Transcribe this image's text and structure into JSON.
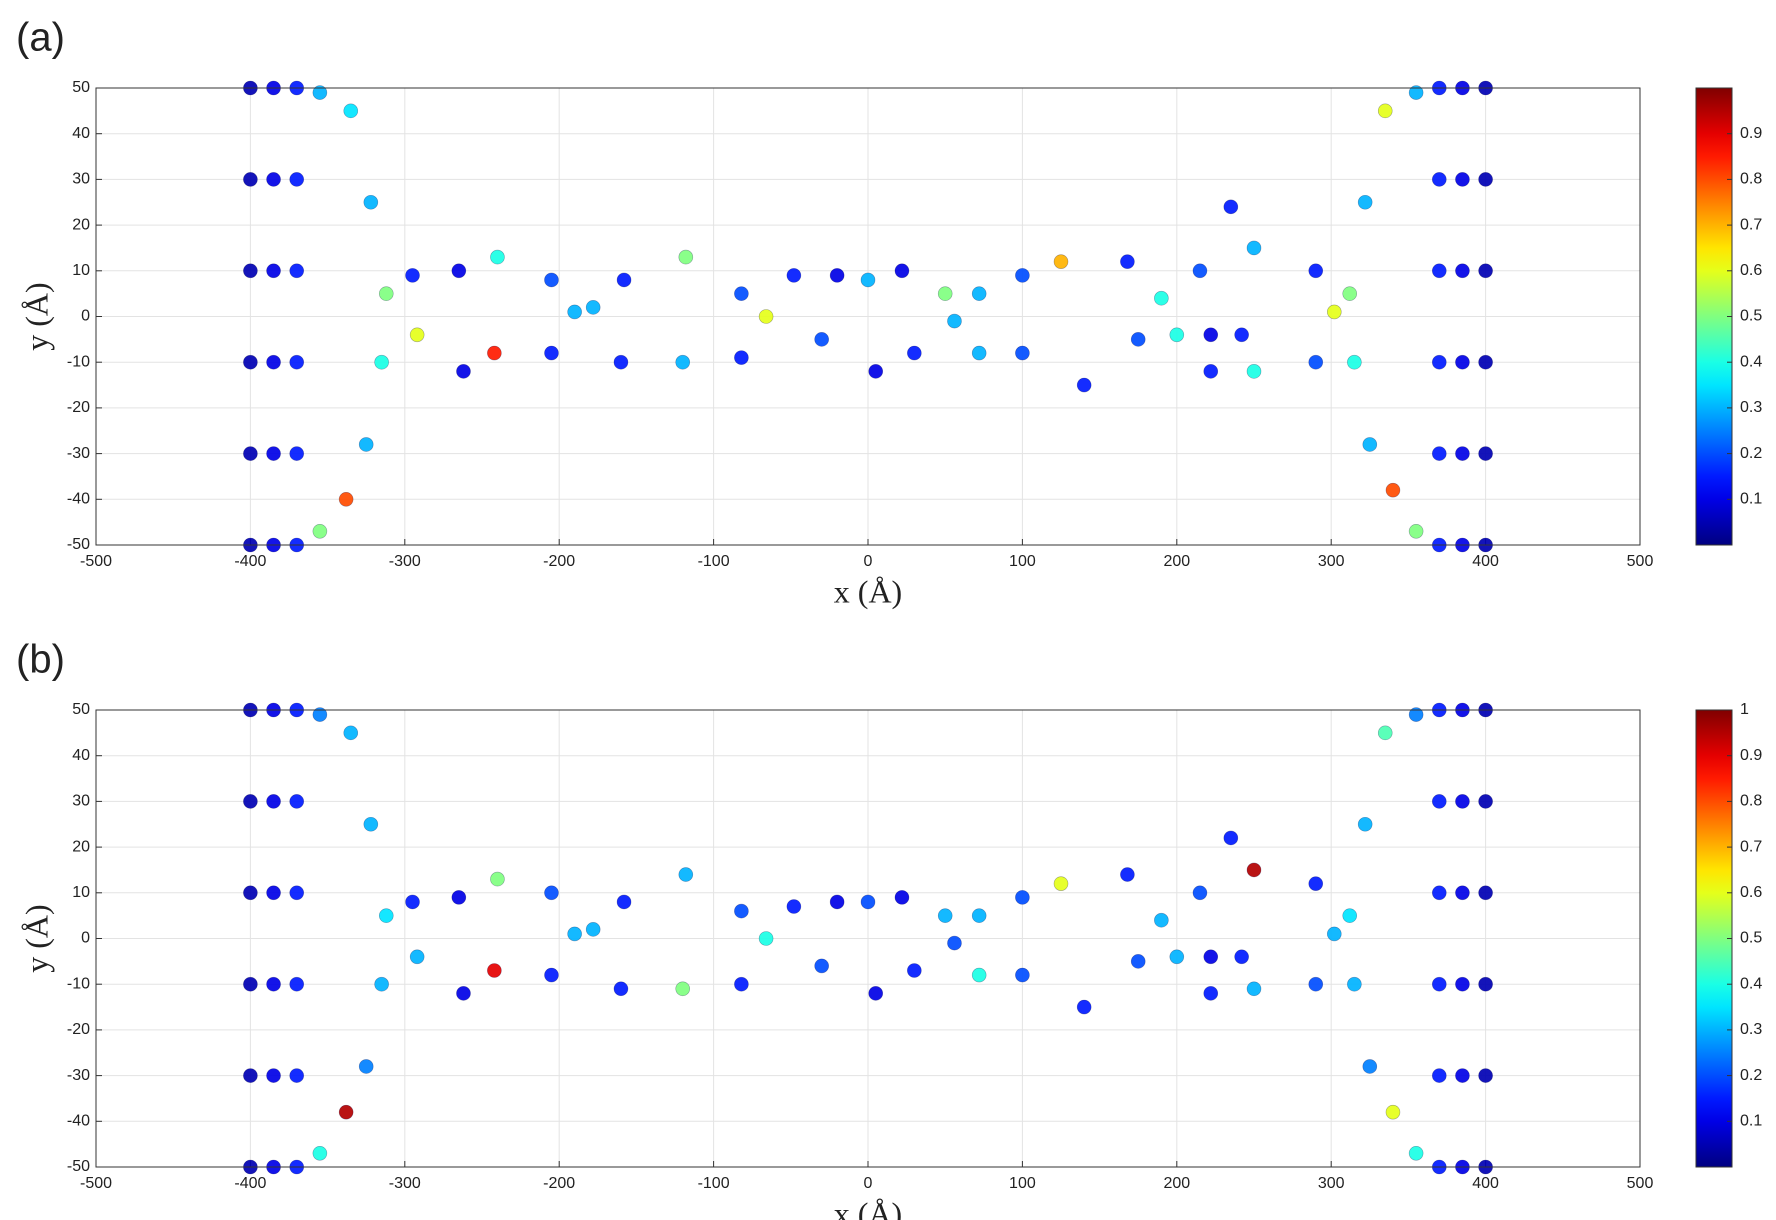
{
  "chart_data": [
    {
      "type": "scatter",
      "label": "(a)",
      "xlabel": "x (Å)",
      "ylabel": "y (Å)",
      "colormap": "jet",
      "grid": true,
      "xlim": [
        -500,
        500
      ],
      "ylim": [
        -50,
        50
      ],
      "xticks": [
        -500,
        -400,
        -300,
        -200,
        -100,
        0,
        100,
        200,
        300,
        400,
        500
      ],
      "yticks": [
        -50,
        -40,
        -30,
        -20,
        -10,
        0,
        10,
        20,
        30,
        40,
        50
      ],
      "clim": [
        0,
        1
      ],
      "cticks": [
        0.1,
        0.2,
        0.3,
        0.4,
        0.5,
        0.6,
        0.7,
        0.8,
        0.9
      ],
      "x": [
        -400,
        -400,
        -400,
        -400,
        -400,
        -400,
        -385,
        -385,
        -385,
        -385,
        -385,
        -385,
        -370,
        -370,
        -370,
        -370,
        -370,
        -370,
        400,
        400,
        400,
        400,
        400,
        400,
        385,
        385,
        385,
        385,
        385,
        385,
        370,
        370,
        370,
        370,
        370,
        370,
        -355,
        -335,
        -322,
        -312,
        -315,
        -325,
        -338,
        -355,
        355,
        335,
        322,
        312,
        315,
        325,
        340,
        355,
        -295,
        -265,
        -240,
        -205,
        -190,
        -205,
        -242,
        -262,
        -292,
        -178,
        -158,
        -118,
        -82,
        -66,
        -82,
        -120,
        -160,
        -48,
        -20,
        0,
        22,
        50,
        56,
        30,
        5,
        -30,
        72,
        100,
        125,
        168,
        190,
        175,
        140,
        100,
        72,
        200,
        215,
        235,
        250,
        290,
        302,
        290,
        250,
        222,
        222,
        242
      ],
      "y": [
        -50,
        -30,
        -10,
        10,
        30,
        50,
        -50,
        -30,
        -10,
        10,
        30,
        50,
        -50,
        -30,
        -10,
        10,
        30,
        50,
        -50,
        -30,
        -10,
        10,
        30,
        50,
        -50,
        -30,
        -10,
        10,
        30,
        50,
        -50,
        -30,
        -10,
        10,
        30,
        50,
        49,
        45,
        25,
        5,
        -10,
        -28,
        -40,
        -47,
        49,
        45,
        25,
        5,
        -10,
        -28,
        -38,
        -47,
        9,
        10,
        13,
        8,
        1,
        -8,
        -8,
        -12,
        -4,
        2,
        8,
        13,
        5,
        0,
        -9,
        -10,
        -10,
        9,
        9,
        8,
        10,
        5,
        -1,
        -8,
        -12,
        -5,
        5,
        9,
        12,
        12,
        4,
        -5,
        -15,
        -8,
        -8,
        -4,
        10,
        24,
        15,
        10,
        1,
        -10,
        -12,
        -12,
        -4,
        -4
      ],
      "c": [
        0.05,
        0.05,
        0.05,
        0.05,
        0.05,
        0.05,
        0.1,
        0.1,
        0.1,
        0.1,
        0.1,
        0.1,
        0.15,
        0.15,
        0.15,
        0.15,
        0.15,
        0.15,
        0.05,
        0.05,
        0.05,
        0.05,
        0.05,
        0.05,
        0.1,
        0.1,
        0.1,
        0.1,
        0.1,
        0.1,
        0.15,
        0.15,
        0.15,
        0.15,
        0.15,
        0.15,
        0.3,
        0.35,
        0.3,
        0.5,
        0.4,
        0.3,
        0.8,
        0.5,
        0.3,
        0.6,
        0.3,
        0.5,
        0.4,
        0.3,
        0.8,
        0.5,
        0.15,
        0.1,
        0.4,
        0.2,
        0.3,
        0.15,
        0.85,
        0.1,
        0.6,
        0.3,
        0.15,
        0.5,
        0.2,
        0.6,
        0.15,
        0.3,
        0.15,
        0.15,
        0.1,
        0.3,
        0.1,
        0.5,
        0.3,
        0.15,
        0.1,
        0.2,
        0.3,
        0.2,
        0.7,
        0.15,
        0.4,
        0.2,
        0.15,
        0.2,
        0.3,
        0.4,
        0.2,
        0.15,
        0.3,
        0.15,
        0.6,
        0.2,
        0.4,
        0.15,
        0.1,
        0.15
      ]
    },
    {
      "type": "scatter",
      "label": "(b)",
      "xlabel": "x (Å)",
      "ylabel": "y (Å)",
      "colormap": "jet",
      "grid": true,
      "xlim": [
        -500,
        500
      ],
      "ylim": [
        -50,
        50
      ],
      "xticks": [
        -500,
        -400,
        -300,
        -200,
        -100,
        0,
        100,
        200,
        300,
        400,
        500
      ],
      "yticks": [
        -50,
        -40,
        -30,
        -20,
        -10,
        0,
        10,
        20,
        30,
        40,
        50
      ],
      "clim": [
        0,
        1
      ],
      "cticks": [
        0.1,
        0.2,
        0.3,
        0.4,
        0.5,
        0.6,
        0.7,
        0.8,
        0.9,
        1
      ],
      "x": [
        -400,
        -400,
        -400,
        -400,
        -400,
        -400,
        -385,
        -385,
        -385,
        -385,
        -385,
        -385,
        -370,
        -370,
        -370,
        -370,
        -370,
        -370,
        400,
        400,
        400,
        400,
        400,
        400,
        385,
        385,
        385,
        385,
        385,
        385,
        370,
        370,
        370,
        370,
        370,
        370,
        -355,
        -335,
        -322,
        -312,
        -315,
        -325,
        -338,
        -355,
        355,
        335,
        322,
        312,
        315,
        325,
        340,
        355,
        -295,
        -265,
        -240,
        -205,
        -190,
        -205,
        -242,
        -262,
        -292,
        -178,
        -158,
        -118,
        -82,
        -66,
        -82,
        -120,
        -160,
        -48,
        -20,
        0,
        22,
        50,
        56,
        30,
        5,
        -30,
        72,
        100,
        125,
        168,
        190,
        175,
        140,
        100,
        72,
        200,
        215,
        235,
        250,
        290,
        302,
        290,
        250,
        222,
        222,
        242
      ],
      "y": [
        -50,
        -30,
        -10,
        10,
        30,
        50,
        -50,
        -30,
        -10,
        10,
        30,
        50,
        -50,
        -30,
        -10,
        10,
        30,
        50,
        -50,
        -30,
        -10,
        10,
        30,
        50,
        -50,
        -30,
        -10,
        10,
        30,
        50,
        -50,
        -30,
        -10,
        10,
        30,
        50,
        49,
        45,
        25,
        5,
        -10,
        -28,
        -38,
        -47,
        49,
        45,
        25,
        5,
        -10,
        -28,
        -38,
        -47,
        8,
        9,
        13,
        10,
        1,
        -8,
        -7,
        -12,
        -4,
        2,
        8,
        14,
        6,
        0,
        -10,
        -11,
        -11,
        7,
        8,
        8,
        9,
        5,
        -1,
        -7,
        -12,
        -6,
        5,
        9,
        12,
        14,
        4,
        -5,
        -15,
        -8,
        -8,
        -4,
        10,
        22,
        15,
        12,
        1,
        -10,
        -11,
        -12,
        -4,
        -4
      ],
      "c": [
        0.05,
        0.05,
        0.05,
        0.05,
        0.05,
        0.05,
        0.1,
        0.1,
        0.1,
        0.1,
        0.1,
        0.1,
        0.15,
        0.15,
        0.15,
        0.15,
        0.15,
        0.15,
        0.05,
        0.05,
        0.05,
        0.05,
        0.05,
        0.05,
        0.1,
        0.1,
        0.1,
        0.1,
        0.1,
        0.1,
        0.15,
        0.15,
        0.15,
        0.15,
        0.15,
        0.15,
        0.25,
        0.3,
        0.3,
        0.35,
        0.3,
        0.25,
        0.95,
        0.4,
        0.25,
        0.45,
        0.3,
        0.35,
        0.3,
        0.25,
        0.6,
        0.4,
        0.15,
        0.1,
        0.5,
        0.2,
        0.3,
        0.15,
        0.9,
        0.1,
        0.3,
        0.3,
        0.15,
        0.3,
        0.2,
        0.4,
        0.15,
        0.5,
        0.15,
        0.15,
        0.1,
        0.2,
        0.1,
        0.3,
        0.2,
        0.15,
        0.1,
        0.2,
        0.3,
        0.2,
        0.6,
        0.15,
        0.3,
        0.2,
        0.15,
        0.2,
        0.4,
        0.3,
        0.2,
        0.15,
        0.95,
        0.15,
        0.3,
        0.2,
        0.3,
        0.15,
        0.1,
        0.15
      ]
    }
  ]
}
